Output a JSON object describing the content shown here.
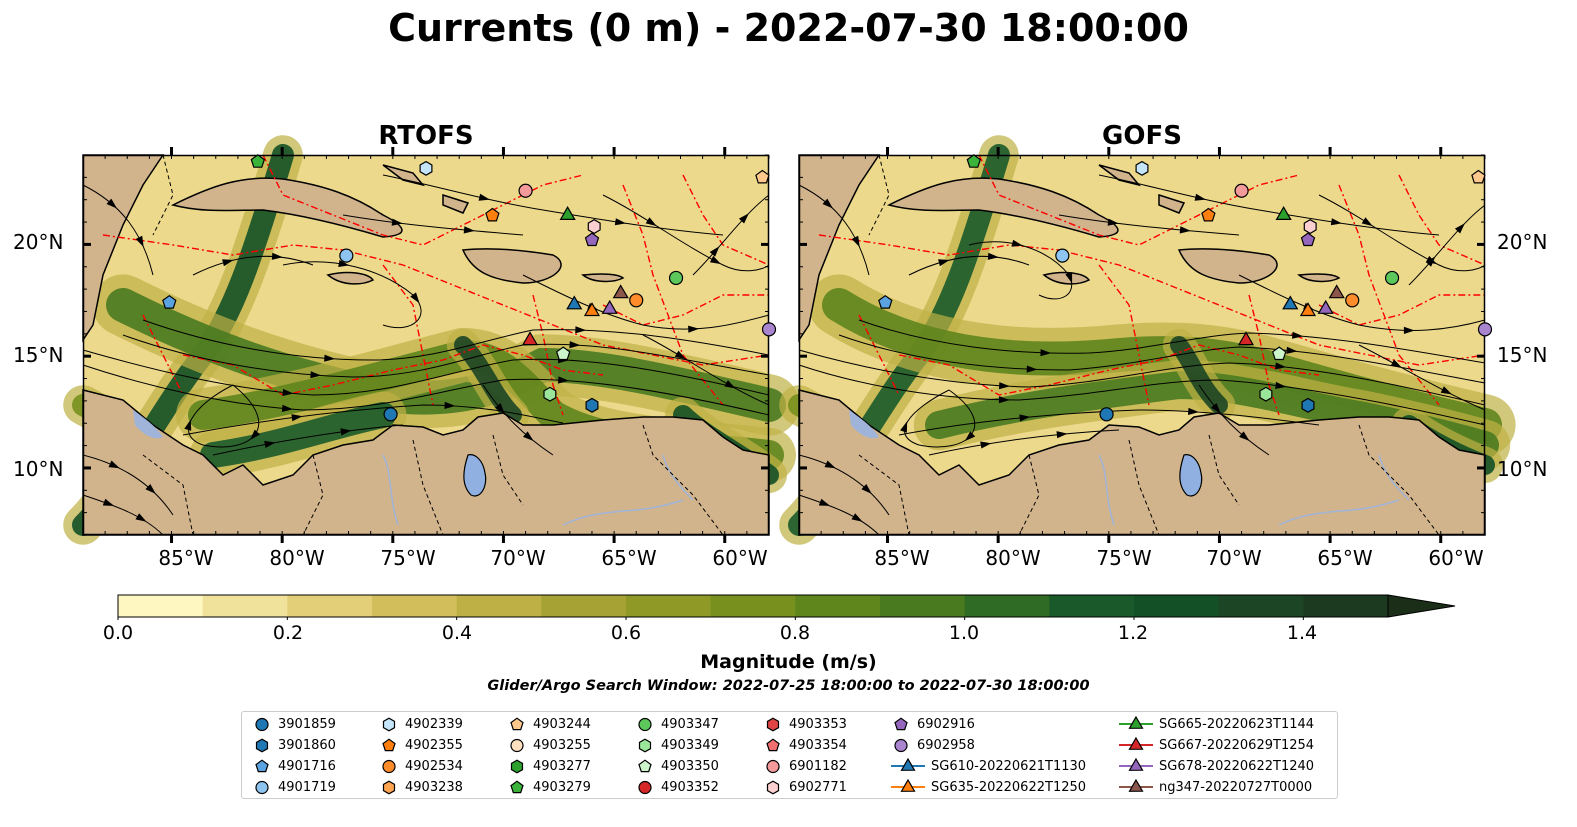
{
  "title": "Currents (0 m) - 2022-07-30 18:00:00",
  "colors": {
    "land": "#d2b48c",
    "lake": "#8fb0e0",
    "river": "#9fb4d8",
    "eez": "#ff0000",
    "streamline": "#000000"
  },
  "panels": [
    {
      "title": "RTOFS"
    },
    {
      "title": "GOFS"
    }
  ],
  "x_ticks": [
    "85°W",
    "80°W",
    "75°W",
    "70°W",
    "65°W",
    "60°W"
  ],
  "y_ticks": [
    "20°N",
    "15°N",
    "10°N"
  ],
  "colorbar": {
    "label": "Magnitude (m/s)",
    "ticks": [
      "0.0",
      "0.2",
      "0.4",
      "0.6",
      "0.8",
      "1.0",
      "1.2",
      "1.4"
    ],
    "extend": "max",
    "colors": [
      "#fff7c2",
      "#f0e29a",
      "#e3cf78",
      "#d3be5c",
      "#bfb045",
      "#a6a233",
      "#8e9a25",
      "#77901e",
      "#5f851d",
      "#4a7a20",
      "#2f6b24",
      "#1a5a2a",
      "#145026",
      "#1c4525",
      "#1c3a1f",
      "#1a2e18"
    ]
  },
  "search_window": "Glider/Argo Search Window: 2022-07-25 18:00:00 to 2022-07-30 18:00:00",
  "chart_data": [
    {
      "type": "map",
      "title": "RTOFS",
      "variable": "surface current magnitude",
      "lon_range": [
        -89,
        -58
      ],
      "lat_range": [
        7,
        24
      ],
      "colorbar_range": [
        0,
        1.5
      ],
      "grid": false,
      "legend_placement": "bottom"
    },
    {
      "type": "map",
      "title": "GOFS",
      "variable": "surface current magnitude",
      "lon_range": [
        -89,
        -58
      ],
      "lat_range": [
        7,
        24
      ],
      "colorbar_range": [
        0,
        1.5
      ],
      "grid": false,
      "legend_placement": "bottom"
    }
  ],
  "platforms": [
    {
      "name": "3901859",
      "marker": "circle",
      "color": "#1f77b4",
      "lon": -75.1,
      "lat": 12.4
    },
    {
      "name": "3901860",
      "marker": "hexagon",
      "color": "#1f77b4",
      "lon": -66.0,
      "lat": 12.8
    },
    {
      "name": "4901716",
      "marker": "pentagon",
      "color": "#5ba3e0",
      "lon": -85.1,
      "lat": 17.4
    },
    {
      "name": "4901719",
      "marker": "circle",
      "color": "#8ec5f0",
      "lon": -77.1,
      "lat": 19.5
    },
    {
      "name": "4902339",
      "marker": "hexagon",
      "color": "#c5e6fa",
      "lon": -73.5,
      "lat": 23.4
    },
    {
      "name": "4902355",
      "marker": "pentagon",
      "color": "#ff7f0e",
      "lon": -70.5,
      "lat": 21.3
    },
    {
      "name": "4902534",
      "marker": "circle",
      "color": "#ff8c2a",
      "lon": -64.0,
      "lat": 17.5
    },
    {
      "name": "4903238",
      "marker": "hexagon",
      "color": "#ffa552",
      "lon": null,
      "lat": null
    },
    {
      "name": "4903244",
      "marker": "pentagon",
      "color": "#ffc88c",
      "lon": -58.3,
      "lat": 23.0
    },
    {
      "name": "4903255",
      "marker": "circle",
      "color": "#ffe0c0",
      "lon": null,
      "lat": null
    },
    {
      "name": "4903277",
      "marker": "hexagon",
      "color": "#2ca02c",
      "lon": null,
      "lat": null
    },
    {
      "name": "4903279",
      "marker": "pentagon",
      "color": "#3bb33b",
      "lon": -81.1,
      "lat": 23.7
    },
    {
      "name": "4903347",
      "marker": "circle",
      "color": "#5cc85c",
      "lon": -62.2,
      "lat": 18.5
    },
    {
      "name": "4903349",
      "marker": "hexagon",
      "color": "#9be59b",
      "lon": -67.9,
      "lat": 13.3
    },
    {
      "name": "4903350",
      "marker": "pentagon",
      "color": "#ccf5cc",
      "lon": -67.3,
      "lat": 15.1
    },
    {
      "name": "4903352",
      "marker": "circle",
      "color": "#d62728",
      "lon": null,
      "lat": null
    },
    {
      "name": "4903353",
      "marker": "hexagon",
      "color": "#e04444",
      "lon": null,
      "lat": null
    },
    {
      "name": "4903354",
      "marker": "pentagon",
      "color": "#f07070",
      "lon": null,
      "lat": null
    },
    {
      "name": "6901182",
      "marker": "circle",
      "color": "#f59a9a",
      "lon": -69.0,
      "lat": 22.4
    },
    {
      "name": "6902771",
      "marker": "hexagon",
      "color": "#fcd0d0",
      "lon": -65.9,
      "lat": 20.8
    },
    {
      "name": "6902916",
      "marker": "pentagon",
      "color": "#9467bd",
      "lon": -66.0,
      "lat": 20.2
    },
    {
      "name": "6902958",
      "marker": "circle",
      "color": "#a985d0",
      "lon": -58.0,
      "lat": 16.2
    },
    {
      "name": "SG610-20220621T1130",
      "marker": "triangle",
      "color": "#1f77b4",
      "line": true,
      "lon": -66.8,
      "lat": 17.3
    },
    {
      "name": "SG635-20220622T1250",
      "marker": "triangle",
      "color": "#ff7f0e",
      "line": true,
      "lon": -66.0,
      "lat": 17.0
    },
    {
      "name": "SG665-20220623T1144",
      "marker": "triangle",
      "color": "#2ca02c",
      "line": true,
      "lon": -67.1,
      "lat": 21.3
    },
    {
      "name": "SG667-20220629T1254",
      "marker": "triangle",
      "color": "#d62728",
      "line": true,
      "lon": -68.8,
      "lat": 15.7
    },
    {
      "name": "SG678-20220622T1240",
      "marker": "triangle",
      "color": "#9467bd",
      "line": true,
      "lon": -65.2,
      "lat": 17.1
    },
    {
      "name": "ng347-20220727T0000",
      "marker": "triangle",
      "color": "#8c564b",
      "line": true,
      "lon": -64.7,
      "lat": 17.8
    }
  ]
}
